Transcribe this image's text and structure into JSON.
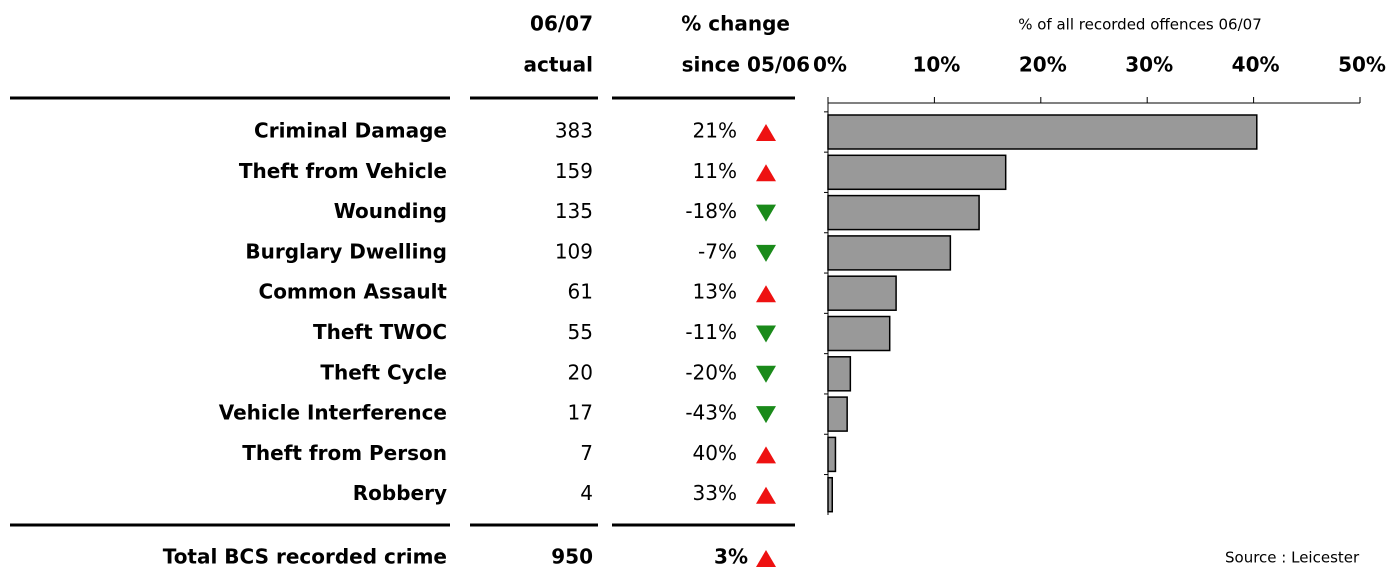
{
  "table": {
    "headers": [
      [
        "06/07",
        "actual"
      ],
      [
        "% change",
        "since 05/06"
      ]
    ],
    "rows": [
      [
        "383",
        "21%"
      ],
      [
        "159",
        "11%"
      ],
      [
        "135",
        "-18%"
      ],
      [
        "109",
        "-7%"
      ],
      [
        "61",
        "13%"
      ],
      [
        "55",
        "-11%"
      ],
      [
        "20",
        "-20%"
      ],
      [
        "17",
        "-43%"
      ],
      [
        "7",
        "40%"
      ],
      [
        "4",
        "33%"
      ]
    ],
    "total": [
      "Total BCS recorded crime",
      "950",
      "3%"
    ],
    "source": "Source : Leicester"
  },
  "chart_data": {
    "type": "bar",
    "orientation": "horizontal",
    "title": "% of all recorded offences 06/07",
    "categories": [
      "Criminal Damage",
      "Theft from Vehicle",
      "Wounding",
      "Burglary Dwelling",
      "Common Assault",
      "Theft TWOC",
      "Theft Cycle",
      "Vehicle Interference",
      "Theft from Person",
      "Robbery"
    ],
    "values": [
      40.3,
      16.7,
      14.2,
      11.5,
      6.4,
      5.8,
      2.1,
      1.8,
      0.7,
      0.4
    ],
    "color": "#999999",
    "xlim": [
      0,
      50
    ],
    "xticks": [
      {
        "value": 0,
        "label": "0%"
      },
      {
        "value": 10,
        "label": "10%"
      },
      {
        "value": 20,
        "label": "20%"
      },
      {
        "value": 30,
        "label": "30%"
      },
      {
        "value": 40,
        "label": "40%"
      },
      {
        "value": 50,
        "label": "50%"
      }
    ]
  }
}
